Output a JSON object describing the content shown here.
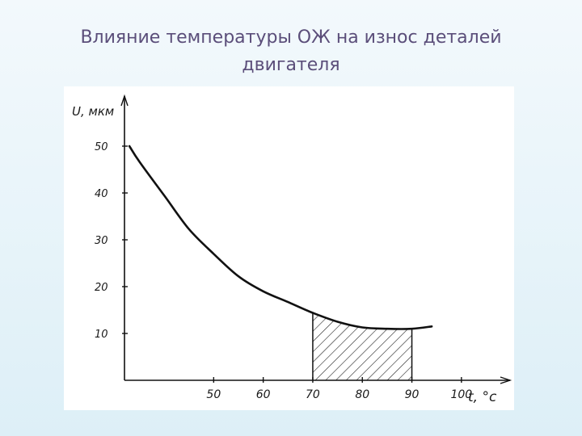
{
  "slide": {
    "title_line1": "Влияние температуры ОЖ на износ деталей",
    "title_line2": "двигателя"
  },
  "chart_data": {
    "type": "line",
    "title": "Влияние температуры ОЖ на износ деталей двигателя",
    "xlabel": "t, °c",
    "ylabel": "U, мкм",
    "x_ticks": [
      50,
      60,
      70,
      80,
      90,
      100
    ],
    "y_ticks": [
      10,
      20,
      30,
      40,
      50
    ],
    "xlim": [
      32,
      113
    ],
    "ylim": [
      0,
      53
    ],
    "grid": false,
    "series": [
      {
        "values": [
          {
            "x": 33,
            "y": 50.0
          },
          {
            "x": 35,
            "y": 46.7
          },
          {
            "x": 40,
            "y": 39.5
          },
          {
            "x": 45,
            "y": 32.3
          },
          {
            "x": 50,
            "y": 27.0
          },
          {
            "x": 55,
            "y": 22.2
          },
          {
            "x": 60,
            "y": 19.0
          },
          {
            "x": 65,
            "y": 16.7
          },
          {
            "x": 70,
            "y": 14.4
          },
          {
            "x": 75,
            "y": 12.5
          },
          {
            "x": 80,
            "y": 11.3
          },
          {
            "x": 85,
            "y": 11.0
          },
          {
            "x": 90,
            "y": 11.0
          },
          {
            "x": 94,
            "y": 11.5
          }
        ]
      }
    ],
    "shaded_region": {
      "x_from": 70,
      "x_to": 90,
      "pattern": "hatched"
    }
  }
}
